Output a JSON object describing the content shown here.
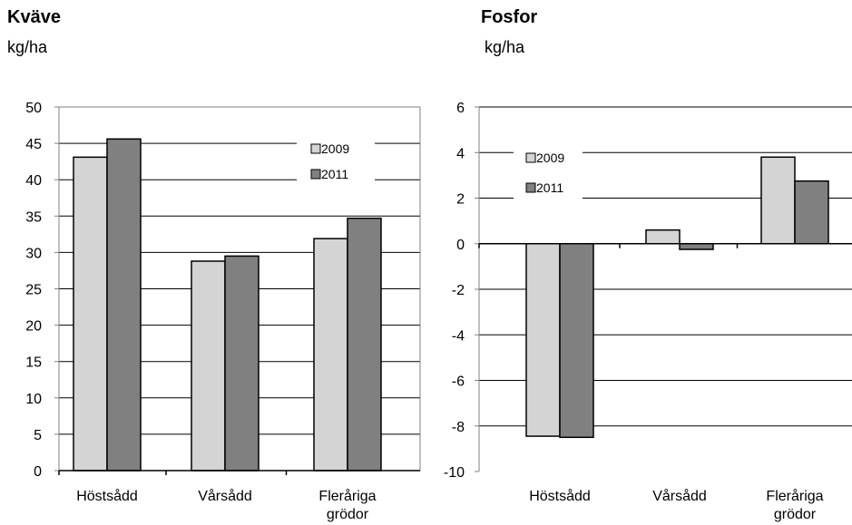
{
  "chart_data": [
    {
      "type": "bar",
      "title": "Kväve",
      "ylabel": "kg/ha",
      "categories": [
        [
          "Höstsådd"
        ],
        [
          "Vårsådd"
        ],
        [
          "Fleråriga",
          "grödor"
        ]
      ],
      "series": [
        {
          "name": "2009",
          "values": [
            43.1,
            28.8,
            31.9
          ],
          "color": "#d4d4d4"
        },
        {
          "name": "2011",
          "values": [
            45.6,
            29.5,
            34.7
          ],
          "color": "#808080"
        }
      ],
      "ylim": [
        0,
        50
      ],
      "yticks": [
        0,
        5,
        10,
        15,
        20,
        25,
        30,
        35,
        40,
        45,
        50
      ],
      "grid": true,
      "legend": "right"
    },
    {
      "type": "bar",
      "title": "Fosfor",
      "ylabel": "kg/ha",
      "categories": [
        [
          "Höstsådd"
        ],
        [
          "Vårsådd"
        ],
        [
          "Fleråriga",
          "grödor"
        ]
      ],
      "series": [
        {
          "name": "2009",
          "values": [
            -8.45,
            0.6,
            3.8
          ],
          "color": "#d4d4d4"
        },
        {
          "name": "2011",
          "values": [
            -8.5,
            -0.25,
            2.75
          ],
          "color": "#808080"
        }
      ],
      "ylim": [
        -10,
        6
      ],
      "yticks": [
        -10,
        -8,
        -6,
        -4,
        -2,
        0,
        2,
        4,
        6
      ],
      "grid": true,
      "legend": "top-left"
    }
  ]
}
